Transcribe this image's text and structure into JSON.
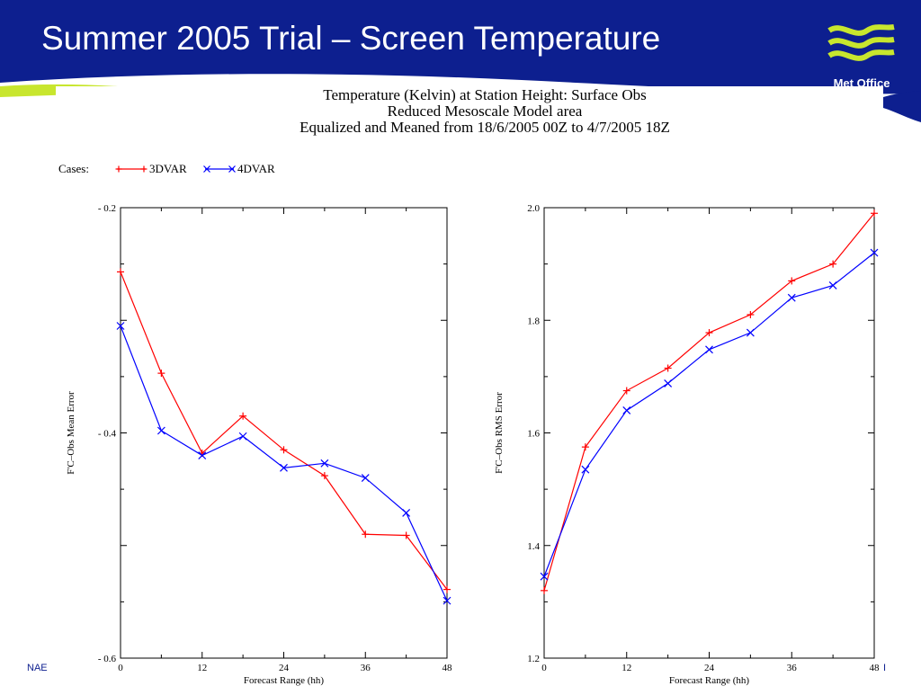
{
  "slide": {
    "title": "Summer 2005 Trial – Screen Temperature",
    "logo_text": "Met Office",
    "footer_left": "NAE",
    "footer_right": "I",
    "colors": {
      "header_blue": "#0d1f8f",
      "accent_green": "#c8e62e"
    }
  },
  "figure": {
    "title_lines": [
      "Temperature (Kelvin) at Station Height:  Surface Obs",
      "Reduced Mesoscale Model area",
      "Equalized and Meaned from 18/6/2005 00Z to 4/7/2005 18Z"
    ],
    "legend_label": "Cases:"
  },
  "chart_data": [
    {
      "type": "line",
      "ylabel": "F'C–Obs Mean Error",
      "xlabel": "Forecast Range (hh)",
      "xlim": [
        0,
        48
      ],
      "ylim": [
        -0.6,
        -0.2
      ],
      "xticks": [
        0,
        12,
        24,
        36,
        48
      ],
      "yticks": [
        -0.6,
        -0.4,
        -0.2
      ],
      "ytick_labels": [
        "- 0.6",
        "- 0.4",
        "- 0.2"
      ],
      "grid": false,
      "x": [
        0,
        6,
        12,
        18,
        24,
        30,
        36,
        42,
        48
      ],
      "series": [
        {
          "name": "3DVAR",
          "color": "#ff0000",
          "marker": "plus",
          "values": [
            -0.257,
            -0.347,
            -0.418,
            -0.385,
            -0.415,
            -0.438,
            -0.49,
            -0.491,
            -0.539
          ]
        },
        {
          "name": "4DVAR",
          "color": "#0000ff",
          "marker": "cross",
          "values": [
            -0.305,
            -0.398,
            -0.42,
            -0.403,
            -0.431,
            -0.427,
            -0.44,
            -0.471,
            -0.549
          ]
        }
      ]
    },
    {
      "type": "line",
      "ylabel": "F'C–Obs RMS Error",
      "xlabel": "Forecast Range (hh)",
      "xlim": [
        0,
        48
      ],
      "ylim": [
        1.2,
        2.0
      ],
      "xticks": [
        0,
        12,
        24,
        36,
        48
      ],
      "yticks": [
        1.2,
        1.4,
        1.6,
        1.8,
        2.0
      ],
      "ytick_labels": [
        "1.2",
        "1.4",
        "1.6",
        "1.8",
        "2.0"
      ],
      "grid": false,
      "x": [
        0,
        6,
        12,
        18,
        24,
        30,
        36,
        42,
        48
      ],
      "series": [
        {
          "name": "3DVAR",
          "color": "#ff0000",
          "marker": "plus",
          "values": [
            1.32,
            1.575,
            1.675,
            1.715,
            1.778,
            1.81,
            1.87,
            1.9,
            1.99
          ]
        },
        {
          "name": "4DVAR",
          "color": "#0000ff",
          "marker": "cross",
          "values": [
            1.345,
            1.535,
            1.64,
            1.688,
            1.748,
            1.778,
            1.84,
            1.862,
            1.92
          ]
        }
      ]
    }
  ]
}
